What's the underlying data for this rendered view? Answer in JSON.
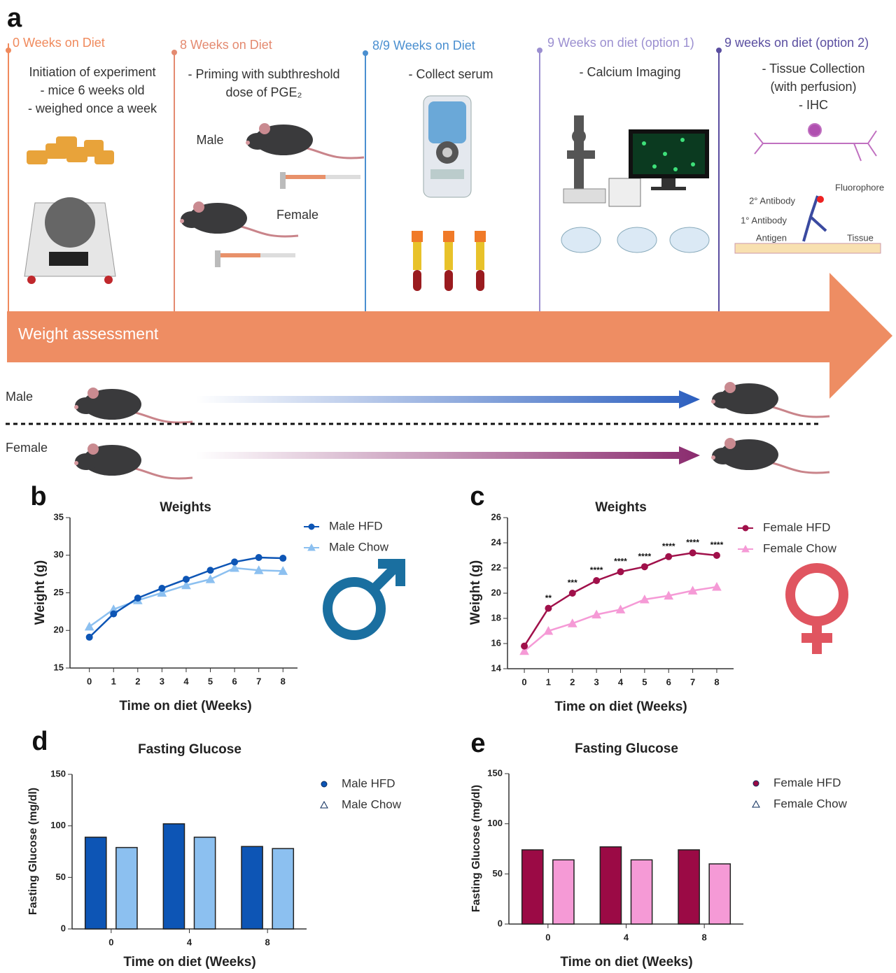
{
  "diagram": {
    "panel_label": "a",
    "stages": [
      {
        "heading": "0 Weeks on Diet",
        "lines": [
          "Initiation of experiment",
          "- mice 6 weeks old",
          "- weighed once a week"
        ]
      },
      {
        "heading": "8 Weeks on Diet",
        "lines": [
          "- Priming with subthreshold",
          "dose of PGE₂"
        ],
        "labels": [
          "Male",
          "Female"
        ]
      },
      {
        "heading": "8/9 Weeks on Diet",
        "lines": [
          "- Collect serum"
        ]
      },
      {
        "heading": "9 Weeks on diet (option 1)",
        "lines": [
          "- Calcium Imaging"
        ]
      },
      {
        "heading": "9 weeks on diet (option 2)",
        "lines": [
          "- Tissue Collection",
          "(with perfusion)",
          "- IHC"
        ],
        "labels": [
          "Fluorophore",
          "2° Antibody",
          "1° Antibody",
          "Antigen",
          "Tissue"
        ]
      }
    ],
    "arrow_label": "Weight assessment",
    "rows": [
      "Male",
      "Female"
    ]
  },
  "chart_data": [
    {
      "type": "line",
      "panel_label": "b",
      "title": "Weights",
      "x_label": "Time on diet (Weeks)",
      "y_label": "Weight (g)",
      "x": [
        0,
        1,
        2,
        3,
        4,
        5,
        6,
        7,
        8
      ],
      "xlim": [
        -0.8,
        8.6
      ],
      "xticks": [
        0,
        1,
        2,
        3,
        4,
        5,
        6,
        7,
        8
      ],
      "ylim": [
        15,
        35
      ],
      "yticks": [
        15,
        20,
        25,
        30,
        35
      ],
      "series": [
        {
          "name": "Male HFD",
          "color": "#0d55b5",
          "marker": "circle",
          "values": [
            19.1,
            22.2,
            24.3,
            25.6,
            26.8,
            28.0,
            29.1,
            29.7,
            29.6
          ]
        },
        {
          "name": "Male Chow",
          "color": "#8cc0f0",
          "marker": "triangle",
          "values": [
            20.5,
            22.8,
            24.0,
            25.0,
            26.0,
            26.8,
            28.3,
            28.0,
            27.9
          ]
        }
      ]
    },
    {
      "type": "line",
      "panel_label": "c",
      "title": "Weights",
      "x_label": "Time on diet (Weeks)",
      "y_label": "Weight (g)",
      "x": [
        0,
        1,
        2,
        3,
        4,
        5,
        6,
        7,
        8
      ],
      "xlim": [
        -0.7,
        8.7
      ],
      "xticks": [
        0,
        1,
        2,
        3,
        4,
        5,
        6,
        7,
        8
      ],
      "ylim": [
        14,
        26
      ],
      "yticks": [
        14,
        16,
        18,
        20,
        22,
        24,
        26
      ],
      "series": [
        {
          "name": "Female HFD",
          "color": "#a0104a",
          "marker": "circle",
          "values": [
            15.8,
            18.8,
            20.0,
            21.0,
            21.7,
            22.1,
            22.9,
            23.2,
            23.0
          ]
        },
        {
          "name": "Female Chow",
          "color": "#f59ad6",
          "marker": "triangle",
          "values": [
            15.4,
            17.0,
            17.6,
            18.3,
            18.7,
            19.5,
            19.8,
            20.2,
            20.5
          ]
        }
      ],
      "annotations": [
        {
          "x": 1,
          "text": "**"
        },
        {
          "x": 2,
          "text": "***"
        },
        {
          "x": 3,
          "text": "****"
        },
        {
          "x": 4,
          "text": "****"
        },
        {
          "x": 5,
          "text": "****"
        },
        {
          "x": 6,
          "text": "****"
        },
        {
          "x": 7,
          "text": "****"
        },
        {
          "x": 8,
          "text": "****"
        }
      ]
    },
    {
      "type": "bar",
      "panel_label": "d",
      "title": "Fasting Glucose",
      "x_label": "Time on diet (Weeks)",
      "y_label": "Fasting Glucose (mg/dl)",
      "categories": [
        "0",
        "4",
        "8"
      ],
      "ylim": [
        0,
        150
      ],
      "yticks": [
        0,
        50,
        100,
        150
      ],
      "series": [
        {
          "name": "Male HFD",
          "color": "#0d55b5",
          "marker": "circle",
          "values": [
            89,
            102,
            80
          ]
        },
        {
          "name": "Male Chow",
          "color": "#8cc0f0",
          "marker": "triangle",
          "values": [
            79,
            89,
            78
          ]
        }
      ]
    },
    {
      "type": "bar",
      "panel_label": "e",
      "title": "Fasting Glucose",
      "x_label": "Time on diet (Weeks)",
      "y_label": "Fasting Glucose (mg/dl)",
      "categories": [
        "0",
        "4",
        "8"
      ],
      "ylim": [
        0,
        150
      ],
      "yticks": [
        0,
        50,
        100,
        150
      ],
      "series": [
        {
          "name": "Female HFD",
          "color": "#9b0a45",
          "marker": "circle",
          "values": [
            74,
            77,
            74
          ]
        },
        {
          "name": "Female Chow",
          "color": "#f59ad6",
          "marker": "triangle",
          "values": [
            64,
            64,
            60
          ]
        }
      ]
    }
  ]
}
